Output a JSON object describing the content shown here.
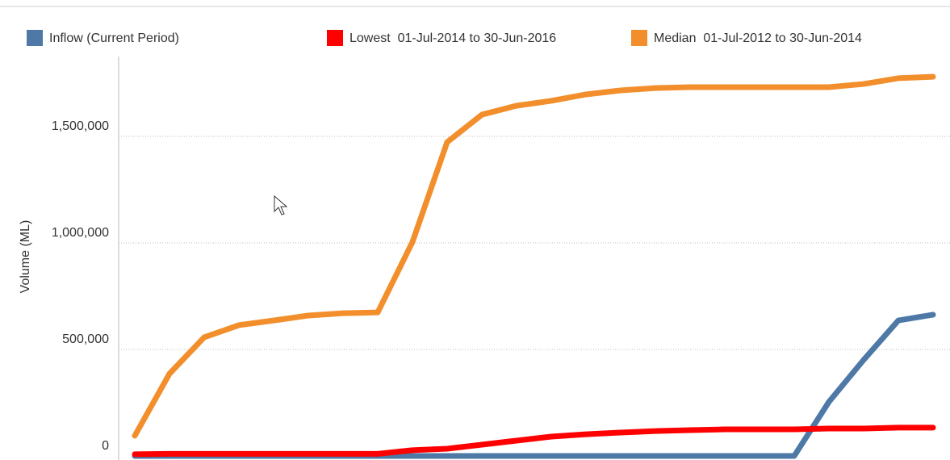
{
  "chart_data": {
    "type": "line",
    "y_label": "Volume (ML)",
    "categories": [
      null,
      null,
      null,
      null,
      null,
      null,
      null,
      null,
      null,
      null,
      null,
      null,
      null,
      null,
      null,
      null,
      null,
      null,
      null,
      null,
      null,
      null,
      null,
      null
    ],
    "series": [
      {
        "name": "Inflow (Current Period)",
        "color": "#4e79a7",
        "values": [
          0,
          0,
          0,
          0,
          0,
          0,
          0,
          0,
          0,
          0,
          0,
          0,
          0,
          0,
          0,
          0,
          0,
          0,
          0,
          0,
          254000,
          451000,
          636000,
          663000
        ]
      },
      {
        "name": "Lowest  01-Jul-2014 to 30-Jun-2016",
        "color": "#ff0000",
        "values": [
          8000,
          10000,
          10000,
          10000,
          10000,
          10000,
          10000,
          10000,
          27000,
          34000,
          53000,
          72000,
          91000,
          102000,
          110000,
          117000,
          121000,
          125000,
          125000,
          125000,
          129000,
          129000,
          133000,
          133000
        ]
      },
      {
        "name": "Median  01-Jul-2012 to 30-Jun-2014",
        "color": "#f28e2b",
        "values": [
          95000,
          386000,
          557000,
          614000,
          636000,
          659000,
          670000,
          674000,
          1004000,
          1473000,
          1602000,
          1644000,
          1667000,
          1697000,
          1716000,
          1727000,
          1731000,
          1731000,
          1731000,
          1731000,
          1731000,
          1746000,
          1773000,
          1780000
        ]
      }
    ],
    "ylim": [
      0,
      1875000
    ],
    "yticks": [
      0,
      {
        "value": 500000,
        "label": "500,000"
      },
      {
        "value": 1000000,
        "label": "1,000,000"
      },
      {
        "value": 1500000,
        "label": "1,500,000"
      }
    ],
    "grid": true
  }
}
